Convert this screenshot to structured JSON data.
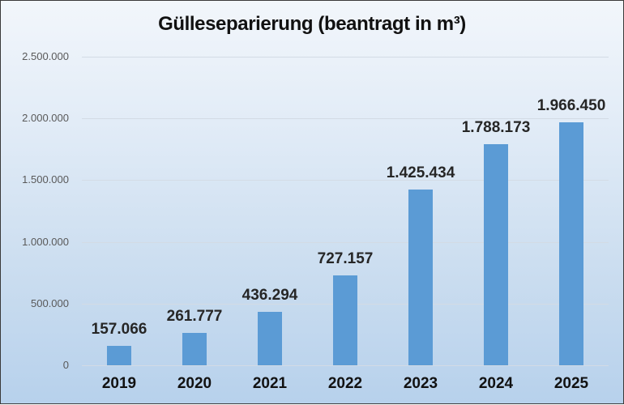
{
  "chart_data": {
    "type": "bar",
    "title": "Gülleseparierung (beantragt in m³)",
    "xlabel": "",
    "ylabel": "",
    "categories": [
      "2019",
      "2020",
      "2021",
      "2022",
      "2023",
      "2024",
      "2025"
    ],
    "values": [
      157066,
      261777,
      436294,
      727157,
      1425434,
      1788173,
      1966450
    ],
    "value_labels": [
      "157.066",
      "261.777",
      "436.294",
      "727.157",
      "1.425.434",
      "1.788.173",
      "1.966.450"
    ],
    "ylim": [
      0,
      2500000
    ],
    "yticks": [
      0,
      500000,
      1000000,
      1500000,
      2000000,
      2500000
    ],
    "ytick_labels": [
      "0",
      "500.000",
      "1.000.000",
      "1.500.000",
      "2.000.000",
      "2.500.000"
    ],
    "grid": true,
    "legend": null,
    "bar_color": "#5b9bd5"
  }
}
